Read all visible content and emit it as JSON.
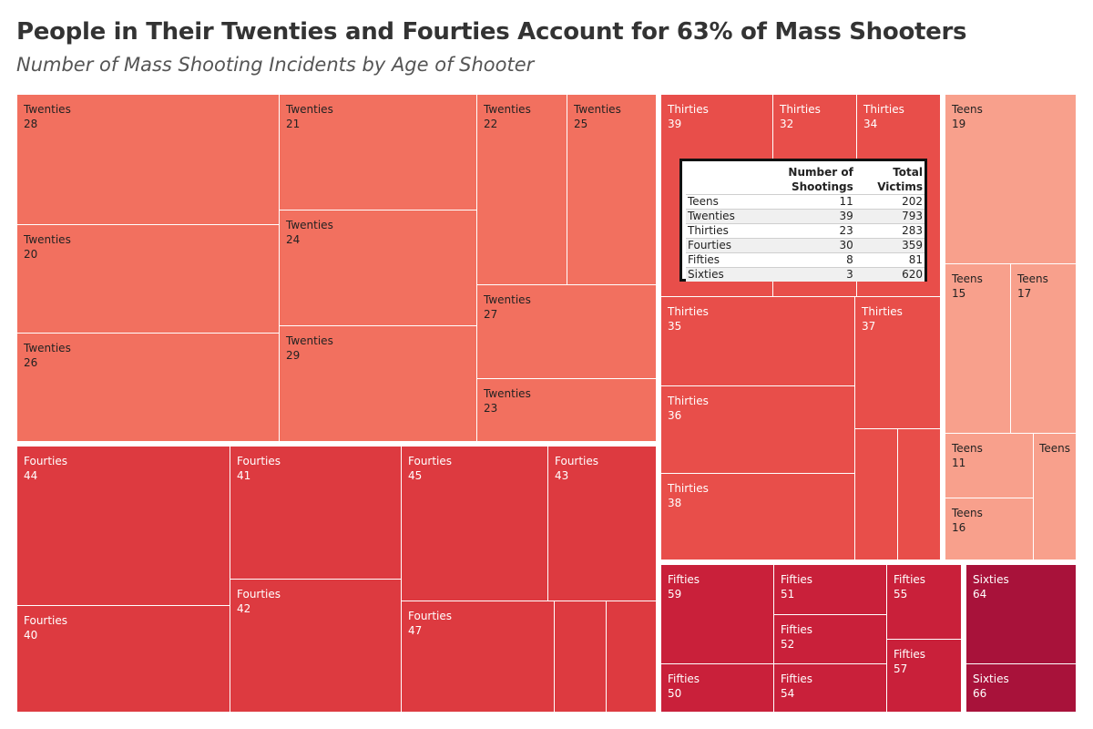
{
  "title": "People in Their Twenties and Fourties Account for 63% of Mass Shooters",
  "subtitle": "Number of Mass Shooting Incidents by Age of Shooter",
  "colors": {
    "Twenties": "#f2705f",
    "Thirties": "#e84e4a",
    "Fourties": "#dd3a40",
    "Teens": "#f8a08c",
    "Fifties": "#c9203a",
    "Sixties": "#a8123a",
    "text_dark": "#222222",
    "text_light": "#ffffff"
  },
  "summary_table": {
    "headers": [
      "",
      "Number of\nShootings",
      "Total\nVictims"
    ],
    "rows": [
      {
        "group": "Teens",
        "shootings": "11",
        "victims": "202"
      },
      {
        "group": "Twenties",
        "shootings": "39",
        "victims": "793"
      },
      {
        "group": "Thirties",
        "shootings": "23",
        "victims": "283"
      },
      {
        "group": "Fourties",
        "shootings": "30",
        "victims": "359"
      },
      {
        "group": "Fifties",
        "shootings": "8",
        "victims": "81"
      },
      {
        "group": "Sixties",
        "shootings": "3",
        "victims": "620"
      }
    ]
  },
  "chart_data": {
    "type": "treemap",
    "title": "People in Their Twenties and Fourties Account for 63% of Mass Shooters",
    "subtitle": "Number of Mass Shooting Incidents by Age of Shooter",
    "groups": [
      {
        "name": "Twenties",
        "count": 39,
        "ages": [
          "28",
          "20",
          "26",
          "21",
          "24",
          "29",
          "22",
          "25",
          "27",
          "23"
        ]
      },
      {
        "name": "Fourties",
        "count": 30,
        "ages": [
          "44",
          "40",
          "41",
          "42",
          "45",
          "43",
          "47",
          "",
          ""
        ]
      },
      {
        "name": "Thirties",
        "count": 23,
        "ages": [
          "39",
          "32",
          "34",
          "35",
          "36",
          "38",
          "37",
          "",
          ""
        ]
      },
      {
        "name": "Teens",
        "count": 11,
        "ages": [
          "19",
          "15",
          "17",
          "11",
          "",
          "16"
        ]
      },
      {
        "name": "Fifties",
        "count": 8,
        "ages": [
          "59",
          "50",
          "51",
          "52",
          "54",
          "55",
          "57"
        ]
      },
      {
        "name": "Sixties",
        "count": 3,
        "ages": [
          "64",
          "66"
        ]
      }
    ]
  }
}
